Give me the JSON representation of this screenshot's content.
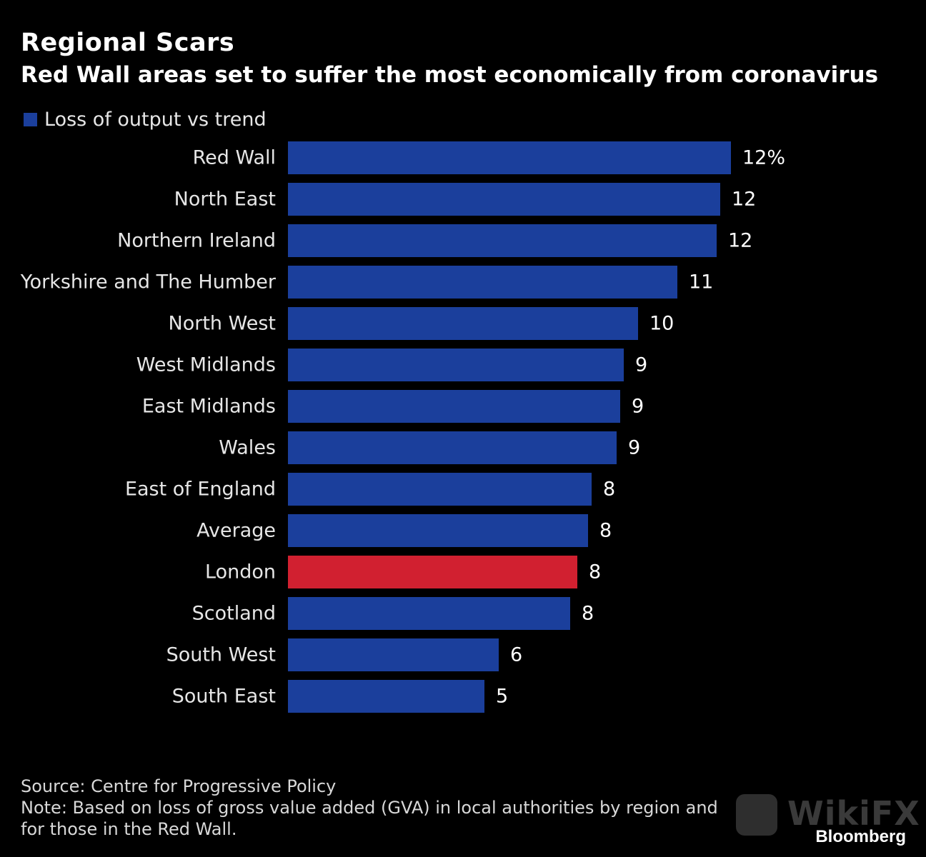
{
  "title": "Regional Scars",
  "subtitle": "Red Wall areas set to suffer the most economically from coronavirus",
  "legend_label": "Loss of output vs trend",
  "colors": {
    "bar": "#1b3f9c",
    "highlight": "#d12030",
    "background": "#000000"
  },
  "source": "Source: Centre for Progressive Policy",
  "note_line1": "Note: Based on loss of gross value added (GVA) in local authorities by region and",
  "note_line2": "for those in the Red Wall.",
  "watermark": "WikiFX",
  "brand": "Bloomberg",
  "chart_data": {
    "type": "bar",
    "orientation": "horizontal",
    "categories": [
      "Red Wall",
      "North East",
      "Northern Ireland",
      "Yorkshire and The Humber",
      "North West",
      "West Midlands",
      "East Midlands",
      "Wales",
      "East of England",
      "Average",
      "London",
      "Scotland",
      "South West",
      "South East"
    ],
    "series": [
      {
        "name": "Loss of output vs trend",
        "values": [
          12.4,
          12.1,
          12.0,
          10.9,
          9.8,
          9.4,
          9.3,
          9.2,
          8.5,
          8.4,
          8.1,
          7.9,
          5.9,
          5.5
        ]
      }
    ],
    "value_labels": [
      "12%",
      "12",
      "12",
      "11",
      "10",
      "9",
      "9",
      "9",
      "8",
      "8",
      "8",
      "8",
      "6",
      "5"
    ],
    "highlight_index": 10,
    "xlim": [
      0,
      13
    ],
    "legend_position": "top-left",
    "grid": false
  }
}
